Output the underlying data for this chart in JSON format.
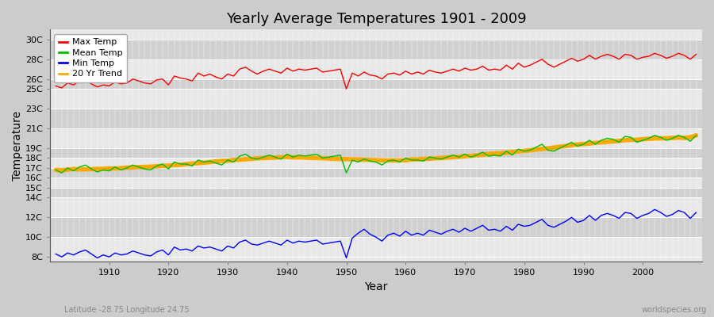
{
  "title": "Yearly Average Temperatures 1901 - 2009",
  "xlabel": "Year",
  "ylabel": "Temperature",
  "subtitle_left": "Latitude -28.75 Longitude 24.75",
  "subtitle_right": "worldspecies.org",
  "years": [
    1901,
    1902,
    1903,
    1904,
    1905,
    1906,
    1907,
    1908,
    1909,
    1910,
    1911,
    1912,
    1913,
    1914,
    1915,
    1916,
    1917,
    1918,
    1919,
    1920,
    1921,
    1922,
    1923,
    1924,
    1925,
    1926,
    1927,
    1928,
    1929,
    1930,
    1931,
    1932,
    1933,
    1934,
    1935,
    1936,
    1937,
    1938,
    1939,
    1940,
    1941,
    1942,
    1943,
    1944,
    1945,
    1946,
    1947,
    1948,
    1949,
    1950,
    1951,
    1952,
    1953,
    1954,
    1955,
    1956,
    1957,
    1958,
    1959,
    1960,
    1961,
    1962,
    1963,
    1964,
    1965,
    1966,
    1967,
    1968,
    1969,
    1970,
    1971,
    1972,
    1973,
    1974,
    1975,
    1976,
    1977,
    1978,
    1979,
    1980,
    1981,
    1982,
    1983,
    1984,
    1985,
    1986,
    1987,
    1988,
    1989,
    1990,
    1991,
    1992,
    1993,
    1994,
    1995,
    1996,
    1997,
    1998,
    1999,
    2000,
    2001,
    2002,
    2003,
    2004,
    2005,
    2006,
    2007,
    2008,
    2009
  ],
  "max_temp": [
    25.3,
    25.1,
    25.6,
    25.4,
    25.8,
    26.0,
    25.5,
    25.2,
    25.4,
    25.3,
    25.7,
    25.5,
    25.6,
    26.0,
    25.8,
    25.6,
    25.5,
    25.9,
    26.0,
    25.4,
    26.3,
    26.1,
    26.0,
    25.8,
    26.6,
    26.3,
    26.5,
    26.2,
    26.0,
    26.5,
    26.3,
    27.0,
    27.2,
    26.8,
    26.5,
    26.8,
    27.0,
    26.8,
    26.6,
    27.1,
    26.8,
    27.0,
    26.9,
    27.0,
    27.1,
    26.7,
    26.8,
    26.9,
    27.0,
    25.0,
    26.6,
    26.3,
    26.7,
    26.4,
    26.3,
    26.0,
    26.5,
    26.6,
    26.4,
    26.8,
    26.5,
    26.7,
    26.5,
    26.9,
    26.7,
    26.6,
    26.8,
    27.0,
    26.8,
    27.1,
    26.9,
    27.0,
    27.3,
    26.9,
    27.0,
    26.9,
    27.4,
    27.0,
    27.6,
    27.2,
    27.4,
    27.7,
    28.0,
    27.5,
    27.2,
    27.5,
    27.8,
    28.1,
    27.8,
    28.0,
    28.4,
    28.0,
    28.3,
    28.5,
    28.3,
    28.0,
    28.5,
    28.4,
    28.0,
    28.2,
    28.3,
    28.6,
    28.4,
    28.1,
    28.3,
    28.6,
    28.4,
    28.0,
    28.5
  ],
  "mean_temp": [
    16.8,
    16.5,
    17.0,
    16.7,
    17.1,
    17.3,
    16.9,
    16.6,
    16.8,
    16.7,
    17.1,
    16.8,
    17.0,
    17.3,
    17.1,
    16.9,
    16.8,
    17.2,
    17.4,
    16.9,
    17.6,
    17.4,
    17.4,
    17.2,
    17.8,
    17.6,
    17.7,
    17.5,
    17.3,
    17.8,
    17.6,
    18.2,
    18.4,
    18.0,
    17.9,
    18.1,
    18.3,
    18.1,
    17.9,
    18.4,
    18.1,
    18.3,
    18.2,
    18.3,
    18.4,
    18.0,
    18.1,
    18.2,
    18.3,
    16.5,
    17.8,
    17.6,
    17.9,
    17.7,
    17.6,
    17.3,
    17.7,
    17.8,
    17.6,
    18.0,
    17.8,
    17.8,
    17.7,
    18.1,
    18.0,
    17.9,
    18.1,
    18.3,
    18.1,
    18.4,
    18.1,
    18.3,
    18.6,
    18.2,
    18.3,
    18.2,
    18.7,
    18.3,
    18.9,
    18.7,
    18.8,
    19.1,
    19.4,
    18.8,
    18.7,
    19.0,
    19.3,
    19.6,
    19.2,
    19.4,
    19.8,
    19.4,
    19.8,
    20.0,
    19.9,
    19.6,
    20.2,
    20.1,
    19.6,
    19.8,
    20.0,
    20.3,
    20.1,
    19.8,
    20.0,
    20.3,
    20.1,
    19.7,
    20.3
  ],
  "min_temp": [
    8.3,
    8.0,
    8.4,
    8.2,
    8.5,
    8.7,
    8.3,
    7.9,
    8.2,
    8.0,
    8.4,
    8.2,
    8.3,
    8.6,
    8.4,
    8.2,
    8.1,
    8.5,
    8.7,
    8.2,
    9.0,
    8.7,
    8.8,
    8.6,
    9.1,
    8.9,
    9.0,
    8.8,
    8.6,
    9.1,
    8.9,
    9.5,
    9.7,
    9.3,
    9.2,
    9.4,
    9.6,
    9.4,
    9.2,
    9.7,
    9.4,
    9.6,
    9.5,
    9.6,
    9.7,
    9.3,
    9.4,
    9.5,
    9.6,
    7.9,
    9.9,
    10.4,
    10.8,
    10.3,
    10.0,
    9.6,
    10.2,
    10.4,
    10.1,
    10.6,
    10.2,
    10.4,
    10.2,
    10.7,
    10.5,
    10.3,
    10.6,
    10.8,
    10.5,
    10.9,
    10.6,
    10.9,
    11.2,
    10.7,
    10.8,
    10.6,
    11.1,
    10.7,
    11.3,
    11.1,
    11.2,
    11.5,
    11.8,
    11.2,
    11.0,
    11.3,
    11.6,
    12.0,
    11.5,
    11.7,
    12.2,
    11.7,
    12.2,
    12.4,
    12.2,
    11.9,
    12.5,
    12.4,
    11.9,
    12.2,
    12.4,
    12.8,
    12.5,
    12.1,
    12.3,
    12.7,
    12.5,
    11.9,
    12.5
  ],
  "yticks": [
    8,
    10,
    12,
    14,
    15,
    16,
    17,
    18,
    19,
    21,
    23,
    25,
    26,
    28,
    30
  ],
  "ytick_labels": [
    "8C",
    "10C",
    "12C",
    "14C",
    "15C",
    "16C",
    "17C",
    "18C",
    "19C",
    "21C",
    "23C",
    "25C",
    "26C",
    "28C",
    "30C"
  ],
  "ylim": [
    7.5,
    31.0
  ],
  "xlim": [
    1900,
    2010
  ],
  "bg_color": "#cccccc",
  "plot_bg_color": "#dddddd",
  "grid_color": "#ffffff",
  "band_color_light": "#e8e8e8",
  "band_color_dark": "#d0d0d0",
  "max_color": "#ff0000",
  "mean_color": "#00bb00",
  "min_color": "#0000ff",
  "trend_color": "#ffaa00",
  "trend_linewidth": 4.0,
  "line_linewidth": 1.0
}
